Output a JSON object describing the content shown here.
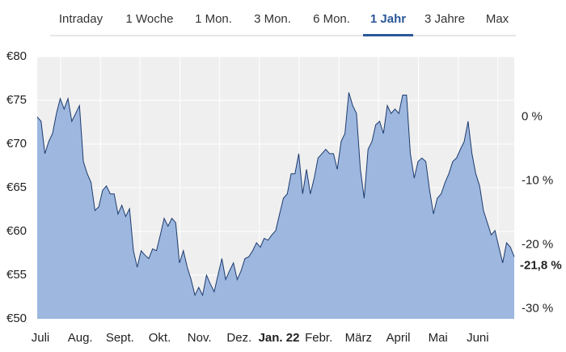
{
  "tabs": {
    "items": [
      "Intraday",
      "1 Woche",
      "1 Mon.",
      "3 Mon.",
      "6 Mon.",
      "1 Jahr",
      "3 Jahre",
      "Max"
    ],
    "active": 5
  },
  "chart_data": {
    "type": "area",
    "x_labels": [
      "Juli",
      "Aug.",
      "Sept.",
      "Okt.",
      "Nov.",
      "Dez.",
      "Jan. 22",
      "Febr.",
      "März",
      "April",
      "Mai",
      "Juni"
    ],
    "values": [
      73.1,
      72.6,
      68.9,
      70.3,
      71.2,
      73.5,
      75.2,
      74,
      75.2,
      72.6,
      73.5,
      74.4,
      68,
      66.6,
      65.6,
      62.4,
      62.8,
      64.7,
      65.2,
      64.3,
      64.3,
      62,
      63,
      61.7,
      62.6,
      57.8,
      55.9,
      57.8,
      57.3,
      56.9,
      58,
      57.8,
      59.6,
      61.5,
      60.6,
      61.5,
      61,
      56.4,
      57.8,
      55.9,
      54.5,
      52.7,
      53.6,
      52.7,
      55,
      54,
      53.1,
      55,
      56.9,
      54.5,
      55.5,
      56.4,
      54.5,
      55.5,
      56.9,
      57.1,
      57.8,
      58.7,
      58.2,
      59.2,
      59,
      59.6,
      60.1,
      62,
      63.8,
      64.3,
      66.6,
      66.6,
      68.9,
      64.3,
      67.1,
      64.3,
      66.1,
      68.4,
      68.9,
      69.4,
      68.9,
      68.9,
      67.1,
      70.3,
      71.2,
      75.9,
      74.4,
      73.5,
      67.1,
      63.8,
      69.4,
      70.3,
      72.2,
      72.6,
      71.2,
      74.4,
      73.5,
      74,
      73.5,
      75.6,
      75.6,
      68.9,
      66.1,
      68,
      68.4,
      68,
      64.7,
      62,
      63.8,
      64.3,
      65.6,
      66.6,
      68,
      68.4,
      69.4,
      70.3,
      72.6,
      68.9,
      66.6,
      65.2,
      62.4,
      61,
      59.6,
      60.1,
      58.2,
      56.4,
      58.7,
      58.2,
      57.1
    ],
    "color": "#9db7df",
    "line_color": "#1d3b6e",
    "ylim": [
      50,
      80
    ],
    "yticks": [
      {
        "value": 50,
        "label": "€50"
      },
      {
        "value": 55,
        "label": "€55"
      },
      {
        "value": 60,
        "label": "€60"
      },
      {
        "value": 65,
        "label": "€65"
      },
      {
        "value": 70,
        "label": "€70"
      },
      {
        "value": 75,
        "label": "€75"
      },
      {
        "value": 80,
        "label": "€80"
      }
    ],
    "y2lim": [
      -31.6,
      9.4
    ],
    "y2ticks": [
      {
        "value": 0,
        "label": "0 %"
      },
      {
        "value": -10,
        "label": "-10 %"
      },
      {
        "value": -20,
        "label": "-20 %"
      },
      {
        "value": -30,
        "label": "-30 %"
      }
    ],
    "current_change": {
      "value": -21.8,
      "label": "-21,8 %"
    },
    "grid": true
  }
}
